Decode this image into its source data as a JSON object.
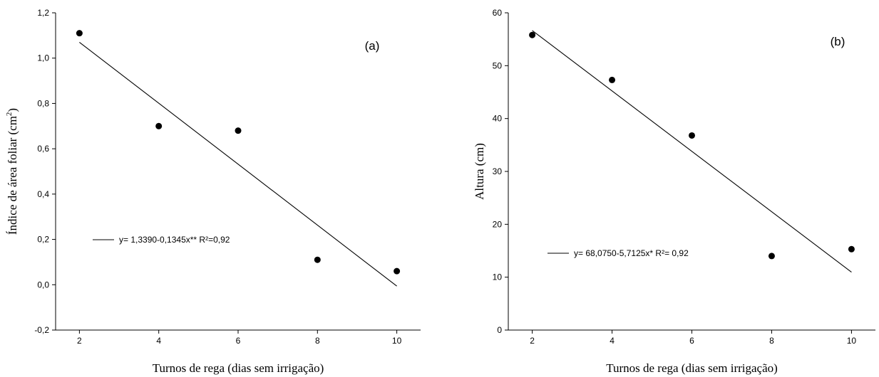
{
  "chart_data": [
    {
      "type": "scatter",
      "panel_label": "(a)",
      "xlabel": "Turnos de rega (dias sem irrigação)",
      "ylabel_main": "Índice de área foliar (cm",
      "ylabel_sup": "2",
      "ylabel_close": ")",
      "xlim": [
        1.4,
        10.6
      ],
      "ylim": [
        -0.2,
        1.2
      ],
      "xticks": [
        2,
        4,
        6,
        8,
        10
      ],
      "xtick_labels": [
        "2",
        "4",
        "6",
        "8",
        "10"
      ],
      "yticks": [
        -0.2,
        0.0,
        0.2,
        0.4,
        0.6,
        0.8,
        1.0,
        1.2
      ],
      "ytick_labels": [
        "-0,2",
        "0,0",
        "0,2",
        "0,4",
        "0,6",
        "0,8",
        "1,0",
        "1,2"
      ],
      "points": {
        "x": [
          2,
          4,
          6,
          8,
          10
        ],
        "y": [
          1.11,
          0.7,
          0.68,
          0.11,
          0.06
        ]
      },
      "fit": {
        "intercept": 1.339,
        "slope": -0.1345,
        "x_range": [
          2,
          10
        ]
      },
      "legend_text": "y= 1,3390-0,1345x**  R²=0,92",
      "grid": false
    },
    {
      "type": "scatter",
      "panel_label": "(b)",
      "xlabel": "Turnos de rega (dias sem irrigação)",
      "ylabel_main": "Altura (cm)",
      "ylabel_sup": "",
      "ylabel_close": "",
      "xlim": [
        1.4,
        10.6
      ],
      "ylim": [
        0,
        60
      ],
      "xticks": [
        2,
        4,
        6,
        8,
        10
      ],
      "xtick_labels": [
        "2",
        "4",
        "6",
        "8",
        "10"
      ],
      "yticks": [
        0,
        10,
        20,
        30,
        40,
        50,
        60
      ],
      "ytick_labels": [
        "0",
        "10",
        "20",
        "30",
        "40",
        "50",
        "60"
      ],
      "points": {
        "x": [
          2,
          4,
          6,
          8,
          10
        ],
        "y": [
          55.8,
          47.3,
          36.8,
          14.0,
          15.3
        ]
      },
      "fit": {
        "intercept": 68.075,
        "slope": -5.7125,
        "x_range": [
          2,
          10
        ]
      },
      "legend_text": "y= 68,0750-5,7125x*  R²= 0,92",
      "grid": false
    }
  ]
}
